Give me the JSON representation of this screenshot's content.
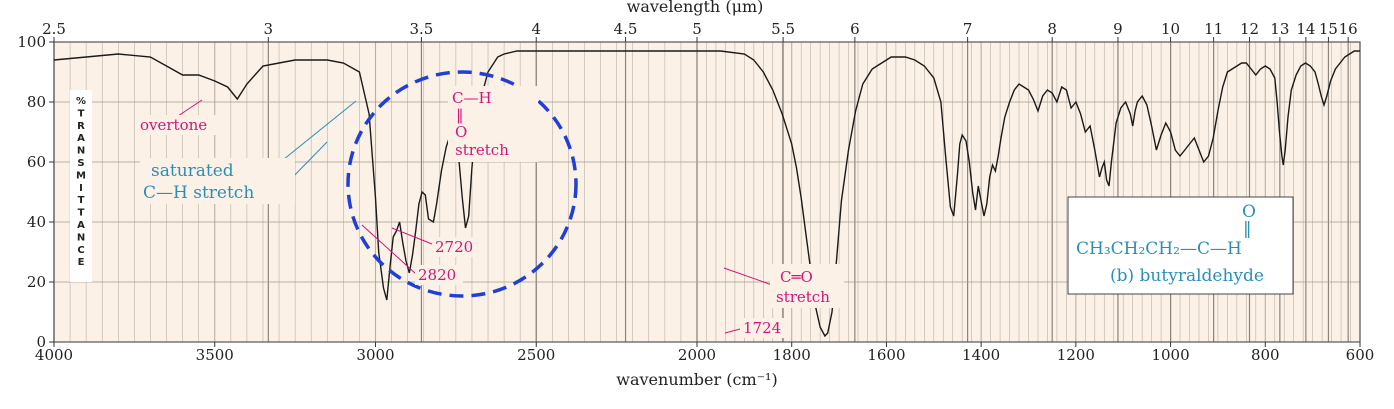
{
  "chart_data": {
    "type": "line",
    "title": "",
    "xlabel": "wavenumber (cm⁻¹)",
    "top_axis_label": "wavelength (μm)",
    "ylabel": "% TRANSMITTANCE",
    "ylabel_letters": [
      "%",
      "T",
      "R",
      "A",
      "N",
      "S",
      "M",
      "I",
      "T",
      "T",
      "A",
      "N",
      "C",
      "E"
    ],
    "ylim": [
      0,
      100
    ],
    "y_ticks": [
      0,
      20,
      40,
      60,
      80,
      100
    ],
    "x_ticks": [
      4000,
      3500,
      3000,
      2500,
      2000,
      1800,
      1600,
      1400,
      1200,
      1000,
      800,
      600
    ],
    "x_tick_labels": [
      "4000",
      "3500",
      "3000",
      "2500",
      "2000",
      "1800",
      "1600",
      "1400",
      "1200",
      "1000",
      "800",
      "600"
    ],
    "top_ticks_um": [
      2.5,
      3,
      3.5,
      4,
      4.5,
      5,
      5.5,
      6,
      7,
      8,
      9,
      10,
      11,
      12,
      13,
      14,
      15,
      16
    ],
    "top_tick_labels": [
      "2.5",
      "3",
      "3.5",
      "4",
      "4.5",
      "5",
      "5.5",
      "6",
      "7",
      "8",
      "9",
      "10",
      "11",
      "12",
      "13",
      "14",
      "15",
      "16"
    ],
    "grid": true,
    "series": [
      {
        "name": "butyraldehyde",
        "points": [
          [
            4000,
            94
          ],
          [
            3900,
            95
          ],
          [
            3800,
            96
          ],
          [
            3700,
            95
          ],
          [
            3650,
            92
          ],
          [
            3600,
            89
          ],
          [
            3550,
            89
          ],
          [
            3500,
            87
          ],
          [
            3460,
            85
          ],
          [
            3430,
            81
          ],
          [
            3400,
            86
          ],
          [
            3350,
            92
          ],
          [
            3300,
            93
          ],
          [
            3250,
            94
          ],
          [
            3200,
            94
          ],
          [
            3150,
            94
          ],
          [
            3100,
            93
          ],
          [
            3050,
            90
          ],
          [
            3020,
            76
          ],
          [
            3000,
            48
          ],
          [
            2990,
            30
          ],
          [
            2975,
            18
          ],
          [
            2965,
            14
          ],
          [
            2955,
            25
          ],
          [
            2945,
            35
          ],
          [
            2935,
            37
          ],
          [
            2925,
            40
          ],
          [
            2915,
            33
          ],
          [
            2905,
            27
          ],
          [
            2895,
            23
          ],
          [
            2885,
            29
          ],
          [
            2875,
            37
          ],
          [
            2865,
            46
          ],
          [
            2855,
            50
          ],
          [
            2845,
            49
          ],
          [
            2835,
            41
          ],
          [
            2820,
            40
          ],
          [
            2810,
            46
          ],
          [
            2795,
            57
          ],
          [
            2780,
            65
          ],
          [
            2765,
            70
          ],
          [
            2750,
            68
          ],
          [
            2740,
            60
          ],
          [
            2730,
            48
          ],
          [
            2720,
            38
          ],
          [
            2710,
            42
          ],
          [
            2700,
            58
          ],
          [
            2690,
            70
          ],
          [
            2670,
            82
          ],
          [
            2650,
            90
          ],
          [
            2620,
            95
          ],
          [
            2600,
            96
          ],
          [
            2560,
            97
          ],
          [
            2500,
            97
          ],
          [
            2300,
            97
          ],
          [
            2100,
            97
          ],
          [
            2000,
            97
          ],
          [
            1950,
            97
          ],
          [
            1900,
            96
          ],
          [
            1880,
            94
          ],
          [
            1860,
            90
          ],
          [
            1840,
            84
          ],
          [
            1820,
            76
          ],
          [
            1800,
            66
          ],
          [
            1790,
            58
          ],
          [
            1780,
            48
          ],
          [
            1770,
            36
          ],
          [
            1760,
            24
          ],
          [
            1750,
            12
          ],
          [
            1740,
            5
          ],
          [
            1730,
            2
          ],
          [
            1724,
            3
          ],
          [
            1715,
            10
          ],
          [
            1705,
            28
          ],
          [
            1695,
            47
          ],
          [
            1680,
            64
          ],
          [
            1665,
            77
          ],
          [
            1650,
            86
          ],
          [
            1630,
            91
          ],
          [
            1610,
            93
          ],
          [
            1590,
            95
          ],
          [
            1575,
            95
          ],
          [
            1560,
            95
          ],
          [
            1540,
            94
          ],
          [
            1520,
            92
          ],
          [
            1500,
            88
          ],
          [
            1485,
            80
          ],
          [
            1475,
            62
          ],
          [
            1465,
            45
          ],
          [
            1458,
            42
          ],
          [
            1450,
            56
          ],
          [
            1445,
            66
          ],
          [
            1440,
            69
          ],
          [
            1432,
            67
          ],
          [
            1425,
            60
          ],
          [
            1418,
            50
          ],
          [
            1412,
            44
          ],
          [
            1406,
            52
          ],
          [
            1400,
            47
          ],
          [
            1394,
            42
          ],
          [
            1388,
            46
          ],
          [
            1382,
            55
          ],
          [
            1376,
            59
          ],
          [
            1370,
            57
          ],
          [
            1364,
            62
          ],
          [
            1358,
            68
          ],
          [
            1350,
            75
          ],
          [
            1340,
            80
          ],
          [
            1330,
            84
          ],
          [
            1320,
            86
          ],
          [
            1310,
            85
          ],
          [
            1300,
            84
          ],
          [
            1290,
            81
          ],
          [
            1280,
            77
          ],
          [
            1270,
            82
          ],
          [
            1260,
            84
          ],
          [
            1250,
            83
          ],
          [
            1240,
            80
          ],
          [
            1230,
            85
          ],
          [
            1220,
            84
          ],
          [
            1210,
            78
          ],
          [
            1200,
            80
          ],
          [
            1190,
            76
          ],
          [
            1180,
            70
          ],
          [
            1170,
            72
          ],
          [
            1160,
            64
          ],
          [
            1150,
            55
          ],
          [
            1145,
            58
          ],
          [
            1140,
            60
          ],
          [
            1135,
            54
          ],
          [
            1130,
            52
          ],
          [
            1125,
            60
          ],
          [
            1115,
            73
          ],
          [
            1105,
            78
          ],
          [
            1095,
            80
          ],
          [
            1085,
            76
          ],
          [
            1080,
            72
          ],
          [
            1075,
            77
          ],
          [
            1070,
            80
          ],
          [
            1060,
            82
          ],
          [
            1050,
            79
          ],
          [
            1040,
            72
          ],
          [
            1030,
            64
          ],
          [
            1020,
            69
          ],
          [
            1010,
            73
          ],
          [
            1000,
            70
          ],
          [
            990,
            64
          ],
          [
            980,
            62
          ],
          [
            970,
            64
          ],
          [
            960,
            66
          ],
          [
            950,
            68
          ],
          [
            940,
            64
          ],
          [
            930,
            60
          ],
          [
            920,
            62
          ],
          [
            910,
            68
          ],
          [
            900,
            77
          ],
          [
            890,
            85
          ],
          [
            880,
            90
          ],
          [
            870,
            91
          ],
          [
            860,
            92
          ],
          [
            850,
            93
          ],
          [
            840,
            93
          ],
          [
            830,
            91
          ],
          [
            820,
            89
          ],
          [
            810,
            91
          ],
          [
            800,
            92
          ],
          [
            790,
            91
          ],
          [
            780,
            88
          ],
          [
            775,
            80
          ],
          [
            770,
            70
          ],
          [
            765,
            62
          ],
          [
            762,
            59
          ],
          [
            758,
            64
          ],
          [
            752,
            75
          ],
          [
            745,
            84
          ],
          [
            735,
            89
          ],
          [
            725,
            92
          ],
          [
            715,
            93
          ],
          [
            705,
            92
          ],
          [
            695,
            90
          ],
          [
            688,
            86
          ],
          [
            682,
            82
          ],
          [
            676,
            79
          ],
          [
            670,
            82
          ],
          [
            662,
            87
          ],
          [
            652,
            91
          ],
          [
            642,
            93
          ],
          [
            632,
            95
          ],
          [
            622,
            96
          ],
          [
            612,
            97
          ],
          [
            600,
            97
          ]
        ]
      }
    ],
    "annotations": {
      "overtone": "overtone",
      "saturated_line1": "saturated",
      "saturated_line2": "C—H  stretch",
      "ald_ch_top": "C—H",
      "ald_ch_double": "‖",
      "ald_ch_o": "O",
      "ald_ch_stretch": "stretch",
      "peak_2720": "2720",
      "peak_2820": "2820",
      "co_line1": "C═O",
      "co_line2": "stretch",
      "peak_1724": "1724"
    },
    "structure_box": {
      "o_atom": "O",
      "double_bond": "‖",
      "formula": "CH₃CH₂CH₂—C—H",
      "caption": "(b) butyraldehyde"
    }
  },
  "colors": {
    "background": "#fcf1e6",
    "grid": "#b8b0a6",
    "trace": "#1a1a1a",
    "pink": "#d0167a",
    "blue_text": "#2a8fb8",
    "dash_circle": "#1f3fd6"
  }
}
